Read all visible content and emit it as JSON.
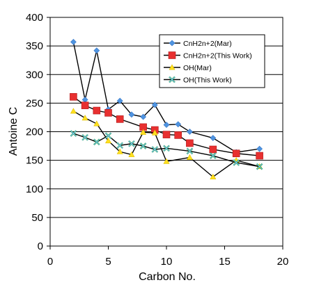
{
  "chart_data": {
    "type": "scatter",
    "title": "",
    "xlabel": "Carbon No.",
    "ylabel": "Antoine C",
    "xlim": [
      0,
      20
    ],
    "ylim": [
      0,
      400
    ],
    "xticks": [
      "0",
      "5",
      "10",
      "15",
      "20"
    ],
    "yticks": [
      "0",
      "50",
      "100",
      "150",
      "200",
      "250",
      "300",
      "350",
      "400"
    ],
    "grid": "horizontal",
    "legend_position": "top-right",
    "series": [
      {
        "name": "CnH2n+2(Mar)",
        "color": "#4f94e0",
        "marker": "diamond",
        "line": true,
        "x": [
          2,
          3,
          4,
          5,
          6,
          7,
          8,
          9,
          10,
          11,
          12,
          14,
          16,
          18
        ],
        "y": [
          357,
          256,
          342,
          239,
          254,
          230,
          226,
          247,
          212,
          213,
          200,
          189,
          164,
          170
        ]
      },
      {
        "name": "CnH2n+2(This Work)",
        "color": "#e83030",
        "marker": "square",
        "line": false,
        "x": [
          2,
          3,
          4,
          5,
          6,
          8,
          9,
          10,
          11,
          12,
          14,
          16,
          18
        ],
        "y": [
          261,
          246,
          237,
          233,
          222,
          208,
          203,
          195,
          194,
          180,
          169,
          162,
          158
        ]
      },
      {
        "name": "OH(Mar)",
        "color": "#ffe020",
        "marker": "triangle",
        "line": true,
        "x": [
          2,
          3,
          4,
          5,
          6,
          7,
          8,
          9,
          10,
          12,
          14,
          16,
          18
        ],
        "y": [
          236,
          224,
          214,
          184,
          165,
          160,
          199,
          198,
          148,
          155,
          121,
          150,
          139
        ]
      },
      {
        "name": "OH(This Work)",
        "color": "#80c0ff",
        "marker": "x",
        "line": false,
        "x": [
          2,
          3,
          4,
          5,
          6,
          7,
          8,
          9,
          10,
          12,
          14,
          16,
          18
        ],
        "y": [
          197,
          190,
          182,
          193,
          176,
          179,
          175,
          169,
          171,
          166,
          158,
          146,
          139
        ]
      }
    ]
  }
}
